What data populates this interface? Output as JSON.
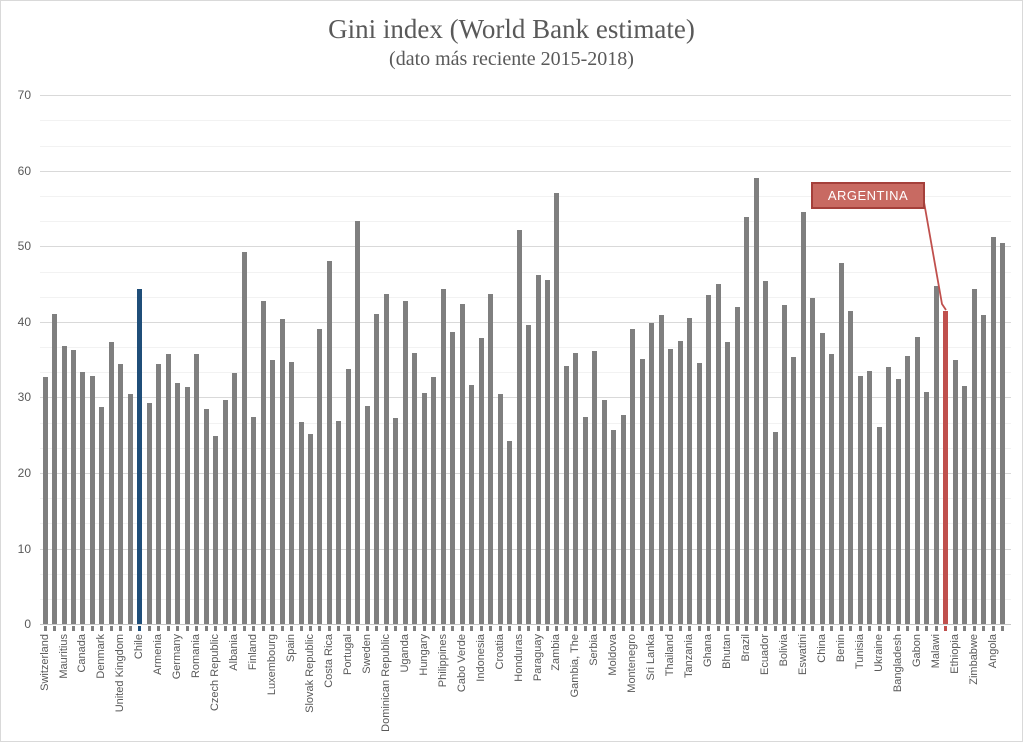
{
  "header": {
    "title": "Gini index (World Bank estimate)",
    "subtitle": "(dato más reciente 2015-2018)"
  },
  "annotation": {
    "label": "ARGENTINA"
  },
  "colors": {
    "bar_gray": "#7f7f7f",
    "bar_blue": "#1f4e79",
    "bar_red": "#c0504d",
    "annotation_fill": "#c86a62",
    "annotation_border": "#a5403b",
    "gridline_major": "#d9d9d9",
    "gridline_minor": "#f2f2f2",
    "axis_line": "#c6c6c6",
    "text_gray": "#595959"
  },
  "chart_data": {
    "type": "bar",
    "title": "Gini index (World Bank estimate)",
    "subtitle": "(dato más reciente 2015-2018)",
    "ylabel": "",
    "xlabel": "",
    "ylim": [
      0,
      70
    ],
    "y_ticks": [
      0,
      10,
      20,
      30,
      40,
      50,
      60,
      70
    ],
    "grid": "major 10 / minor 3.33",
    "legend": "none",
    "note": "102 bars; axis labels shown for every second bar; Chile highlighted blue; Argentina highlighted red with callout",
    "bars": [
      {
        "label": "Switzerland",
        "value": 32.7
      },
      {
        "label": "",
        "value": 41.0
      },
      {
        "label": "Mauritius",
        "value": 36.8
      },
      {
        "label": "",
        "value": 36.3
      },
      {
        "label": "Canada",
        "value": 33.3
      },
      {
        "label": "",
        "value": 32.9
      },
      {
        "label": "Denmark",
        "value": 28.7
      },
      {
        "label": "",
        "value": 37.4
      },
      {
        "label": "United Kingdom",
        "value": 34.4
      },
      {
        "label": "",
        "value": 30.5
      },
      {
        "label": "Chile",
        "value": 44.4,
        "color": "blue"
      },
      {
        "label": "",
        "value": 29.2
      },
      {
        "label": "Armenia",
        "value": 34.4
      },
      {
        "label": "",
        "value": 35.7
      },
      {
        "label": "Germany",
        "value": 31.9
      },
      {
        "label": "",
        "value": 31.4
      },
      {
        "label": "Romania",
        "value": 35.8
      },
      {
        "label": "",
        "value": 28.5
      },
      {
        "label": "Czech Republic",
        "value": 24.9
      },
      {
        "label": "",
        "value": 29.7
      },
      {
        "label": "Albania",
        "value": 33.2
      },
      {
        "label": "",
        "value": 49.3
      },
      {
        "label": "Finland",
        "value": 27.4
      },
      {
        "label": "",
        "value": 42.8
      },
      {
        "label": "Luxembourg",
        "value": 34.9
      },
      {
        "label": "",
        "value": 40.4
      },
      {
        "label": "Spain",
        "value": 34.7
      },
      {
        "label": "",
        "value": 26.8
      },
      {
        "label": "Slovak Republic",
        "value": 25.2
      },
      {
        "label": "",
        "value": 39.0
      },
      {
        "label": "Costa Rica",
        "value": 48.0
      },
      {
        "label": "",
        "value": 26.9
      },
      {
        "label": "Portugal",
        "value": 33.8
      },
      {
        "label": "",
        "value": 53.3
      },
      {
        "label": "Sweden",
        "value": 28.8
      },
      {
        "label": "",
        "value": 41.0
      },
      {
        "label": "Dominican Republic",
        "value": 43.7
      },
      {
        "label": "",
        "value": 27.3
      },
      {
        "label": "Uganda",
        "value": 42.8
      },
      {
        "label": "",
        "value": 35.9
      },
      {
        "label": "Hungary",
        "value": 30.6
      },
      {
        "label": "",
        "value": 32.7
      },
      {
        "label": "Philippines",
        "value": 44.4
      },
      {
        "label": "",
        "value": 38.7
      },
      {
        "label": "Cabo Verde",
        "value": 42.4
      },
      {
        "label": "",
        "value": 31.6
      },
      {
        "label": "Indonesia",
        "value": 37.8
      },
      {
        "label": "",
        "value": 43.7
      },
      {
        "label": "Croatia",
        "value": 30.4
      },
      {
        "label": "",
        "value": 24.2
      },
      {
        "label": "Honduras",
        "value": 52.1
      },
      {
        "label": "",
        "value": 39.6
      },
      {
        "label": "Paraguay",
        "value": 46.2
      },
      {
        "label": "",
        "value": 45.5
      },
      {
        "label": "Zambia",
        "value": 57.1
      },
      {
        "label": "",
        "value": 34.2
      },
      {
        "label": "Gambia, The",
        "value": 35.9
      },
      {
        "label": "",
        "value": 27.4
      },
      {
        "label": "Serbia",
        "value": 36.2
      },
      {
        "label": "",
        "value": 29.6
      },
      {
        "label": "Moldova",
        "value": 25.7
      },
      {
        "label": "",
        "value": 27.7
      },
      {
        "label": "Montenegro",
        "value": 39.0
      },
      {
        "label": "",
        "value": 35.1
      },
      {
        "label": "Sri Lanka",
        "value": 39.8
      },
      {
        "label": "",
        "value": 40.9
      },
      {
        "label": "Thailand",
        "value": 36.4
      },
      {
        "label": "",
        "value": 37.5
      },
      {
        "label": "Tanzania",
        "value": 40.5
      },
      {
        "label": "",
        "value": 34.5
      },
      {
        "label": "Ghana",
        "value": 43.5
      },
      {
        "label": "",
        "value": 45.0
      },
      {
        "label": "Bhutan",
        "value": 37.4
      },
      {
        "label": "",
        "value": 42.0
      },
      {
        "label": "Brazil",
        "value": 53.9
      },
      {
        "label": "",
        "value": 59.1
      },
      {
        "label": "Ecuador",
        "value": 45.4
      },
      {
        "label": "",
        "value": 25.4
      },
      {
        "label": "Bolivia",
        "value": 42.2
      },
      {
        "label": "",
        "value": 35.4
      },
      {
        "label": "Eswatini",
        "value": 54.6
      },
      {
        "label": "",
        "value": 43.2
      },
      {
        "label": "China",
        "value": 38.5
      },
      {
        "label": "",
        "value": 35.7
      },
      {
        "label": "Benin",
        "value": 47.8
      },
      {
        "label": "",
        "value": 41.5
      },
      {
        "label": "Tunisia",
        "value": 32.8
      },
      {
        "label": "",
        "value": 33.5
      },
      {
        "label": "Ukraine",
        "value": 26.1
      },
      {
        "label": "",
        "value": 34.0
      },
      {
        "label": "Bangladesh",
        "value": 32.4
      },
      {
        "label": "",
        "value": 35.5
      },
      {
        "label": "Gabon",
        "value": 38.0
      },
      {
        "label": "",
        "value": 30.7
      },
      {
        "label": "Malawi",
        "value": 44.7
      },
      {
        "label": "",
        "value": 41.4,
        "color": "red",
        "callout": "ARGENTINA"
      },
      {
        "label": "Ethiopia",
        "value": 35.0
      },
      {
        "label": "",
        "value": 31.5
      },
      {
        "label": "Zimbabwe",
        "value": 44.3
      },
      {
        "label": "",
        "value": 40.9
      },
      {
        "label": "Angola",
        "value": 51.3
      },
      {
        "label": "",
        "value": 50.4
      }
    ]
  }
}
